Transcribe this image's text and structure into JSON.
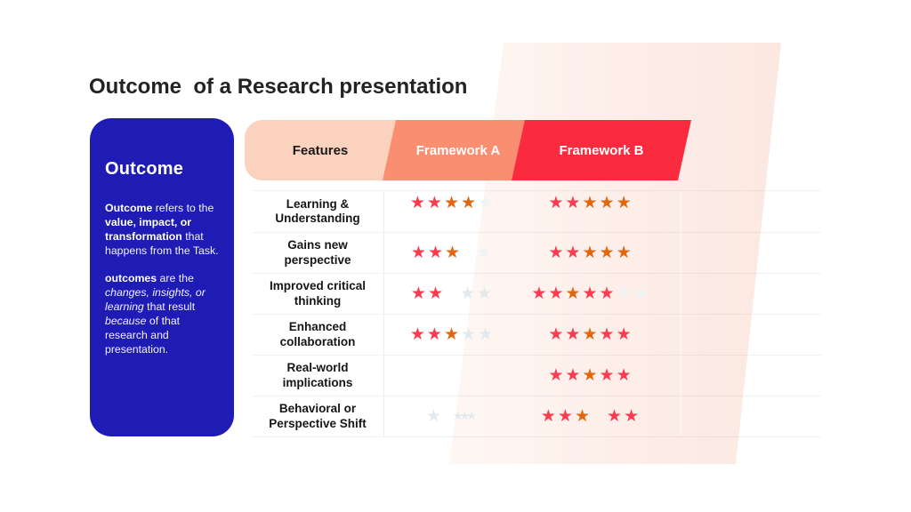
{
  "title": "Outcome  of a Research presentation",
  "sidebar": {
    "heading": "Outcome",
    "paragraphs": [
      {
        "segments": [
          {
            "text": "Outcome",
            "bold": true
          },
          {
            "text": " refers to the "
          },
          {
            "text": "value, impact, or transformation",
            "bold": true
          },
          {
            "text": " that happens from the Task."
          }
        ]
      },
      {
        "segments": [
          {
            "text": "outcomes",
            "bold": true
          },
          {
            "text": " are the "
          },
          {
            "text": "changes, insights, or learning",
            "italic": true
          },
          {
            "text": " that result "
          },
          {
            "text": "because",
            "italic": true
          },
          {
            "text": " of that research and presentation."
          }
        ]
      }
    ]
  },
  "table": {
    "columns": [
      {
        "label": "Features",
        "bg": "#fbd2be",
        "color": "#1a1a1a"
      },
      {
        "label": "Framework A",
        "bg": "#fa8e70",
        "color": "#ffffff"
      },
      {
        "label": "Framework B",
        "bg": "#fa2b3e",
        "color": "#ffffff"
      }
    ],
    "rows": [
      {
        "feature": "Learning & Understanding",
        "framework_a": [
          "red",
          "red",
          "orange",
          "orange",
          "grayf"
        ],
        "framework_b": [
          "red",
          "red",
          "orange",
          "orange",
          "orange"
        ]
      },
      {
        "feature": "Gains new perspective",
        "framework_a": [
          "red",
          "red",
          "orange",
          "gap",
          "grayf"
        ],
        "framework_b": [
          "red",
          "red",
          "orange",
          "orange",
          "orange"
        ]
      },
      {
        "feature": "Improved critical thinking",
        "framework_a": [
          "red",
          "red",
          "gap",
          "gray",
          "gray"
        ],
        "framework_b": [
          "red",
          "red",
          "orange",
          "red",
          "red",
          "grayf",
          "grayf"
        ]
      },
      {
        "feature": "Enhanced collaboration",
        "framework_a": [
          "red",
          "red",
          "orange",
          "gray",
          "gray"
        ],
        "framework_b": [
          "red",
          "red",
          "orange",
          "red",
          "red"
        ]
      },
      {
        "feature": "Real-world implications",
        "framework_a": [],
        "framework_b": [
          "red",
          "red",
          "orange",
          "red",
          "red"
        ]
      },
      {
        "feature": "Behavioral or Perspective Shift",
        "framework_a": [
          "gray",
          "gap",
          "gray_tight",
          "gray_tight",
          "gray_tight"
        ],
        "framework_b": [
          "red",
          "red",
          "orange",
          "gap",
          "red",
          "red"
        ]
      }
    ],
    "rating_scale_max": 5
  },
  "colors": {
    "card_bg": "#1e1cb5",
    "title_color": "#232323",
    "header_features_bg": "#fbd2be",
    "header_framework_a_bg": "#fa8e70",
    "header_framework_b_bg": "#fa2b3e",
    "star_red": "#fb3b4f",
    "star_orange": "#e2660e",
    "star_gray": "#e3eaef",
    "star_gray_faint": "#eef3f6",
    "background_sweep_pink": "#fbe7e0"
  }
}
